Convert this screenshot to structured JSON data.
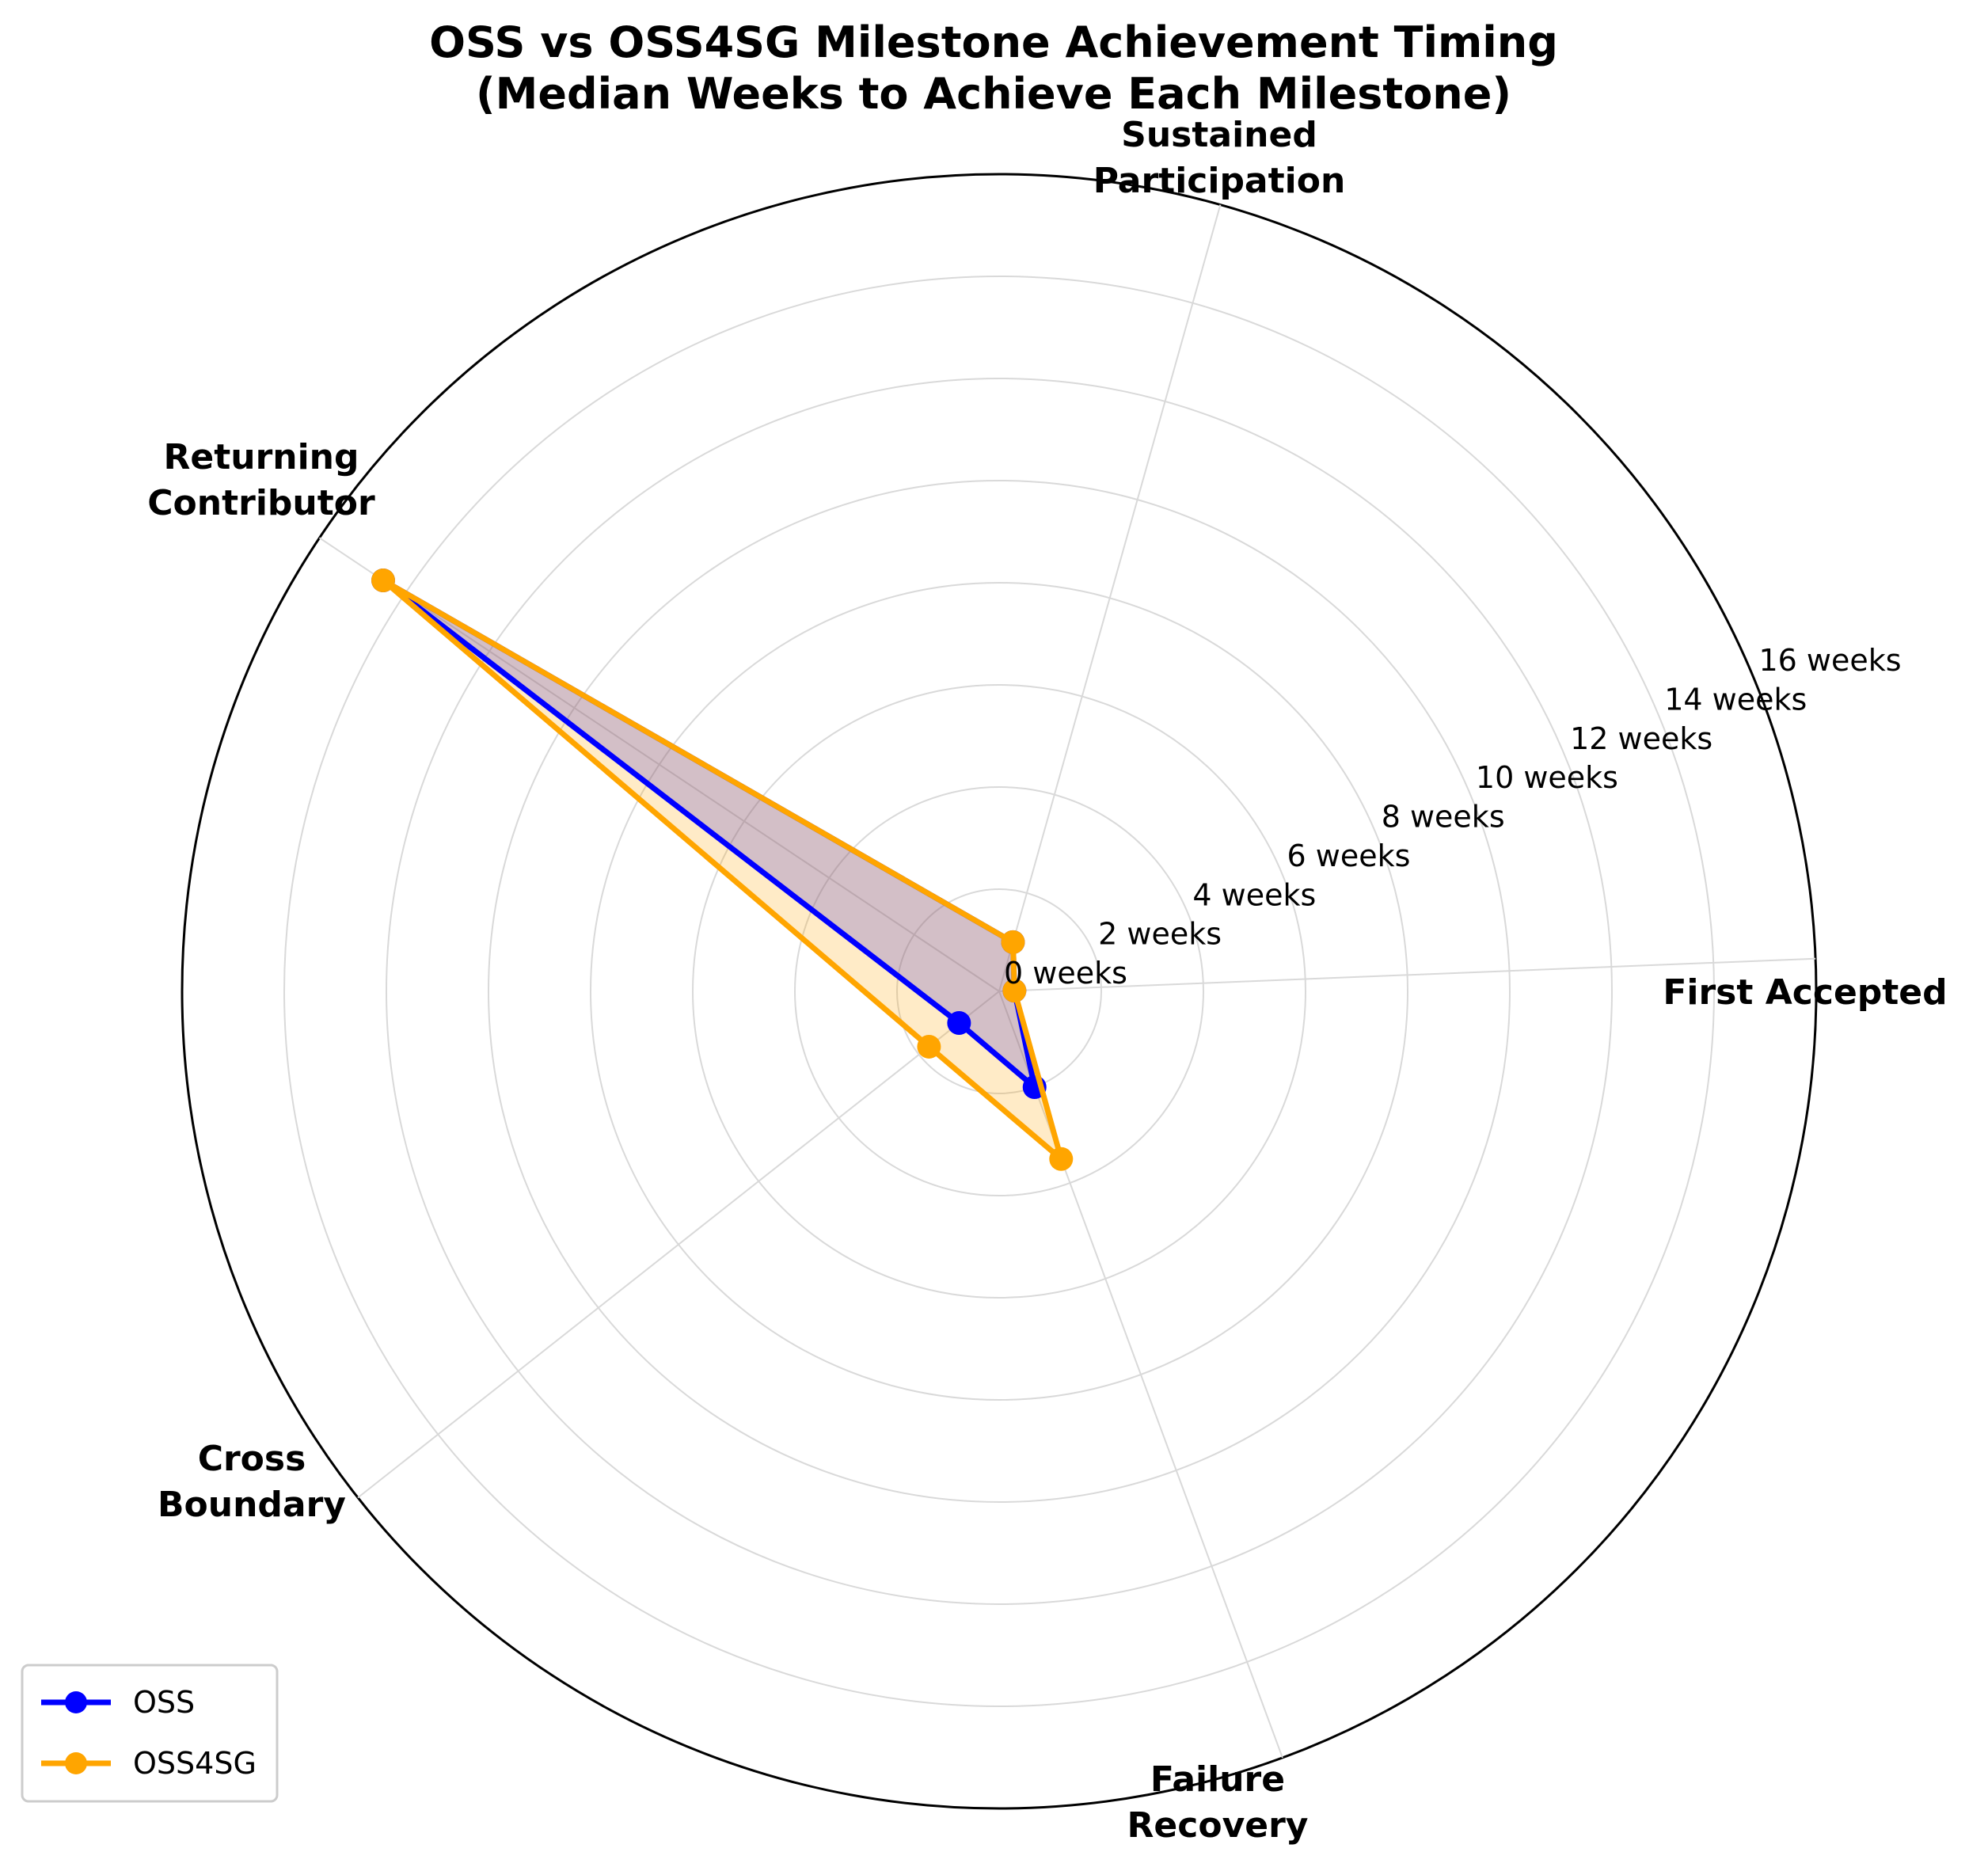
{
  "chart_data": {
    "type": "radar",
    "title_lines": [
      "OSS vs OSS4SG Milestone Achievement Timing",
      "(Median Weeks to Achieve Each Milestone)"
    ],
    "categories": [
      [
        "First Accepted"
      ],
      [
        "Sustained",
        "Participation"
      ],
      [
        "Returning",
        "Contributor"
      ],
      [
        "Cross",
        "Boundary"
      ],
      [
        "Failure",
        "Recovery"
      ]
    ],
    "rlim": [
      0,
      16
    ],
    "rticks": [
      0,
      2,
      4,
      6,
      8,
      10,
      12,
      14,
      16
    ],
    "rtick_labels": [
      "0 weeks",
      "2 weeks",
      "4 weeks",
      "6 weeks",
      "8 weeks",
      "10 weeks",
      "12 weeks",
      "14 weeks",
      "16 weeks"
    ],
    "grid": true,
    "legend_position": "lower-left",
    "series": [
      {
        "name": "OSS",
        "color": "#0000ff",
        "values": [
          0.3,
          1.0,
          14.5,
          1.0,
          2.0
        ]
      },
      {
        "name": "OSS4SG",
        "color": "#ffa500",
        "values": [
          0.3,
          1.0,
          14.5,
          1.75,
          3.5
        ]
      }
    ],
    "fill_alpha": 0.22
  }
}
